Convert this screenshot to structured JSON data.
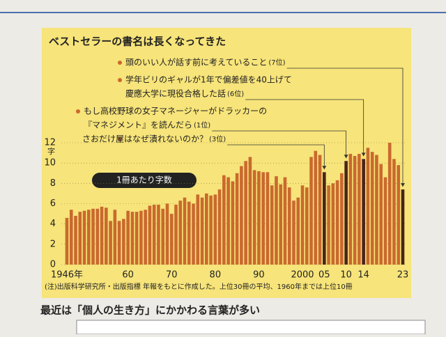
{
  "chart_data": {
    "type": "bar",
    "title": "ベストセラーの書名は長くなってきた",
    "y_unit": "字",
    "value_label": "1冊あたり字数",
    "note": "(注)出版科学研究所・出版指標 年報をもとに作成した。上位30冊の平均、1960年までは上位10冊",
    "subheading": "最近は「個人の生き方」にかかわる言葉が多い",
    "color": "#c9692e",
    "highlight_color": "#4a2418",
    "background": "#f7e47a",
    "ylim": [
      0,
      12
    ],
    "yticks": [
      0,
      2,
      4,
      6,
      8,
      10,
      12
    ],
    "grid": true,
    "categories": [
      "1946年",
      null,
      null,
      null,
      null,
      null,
      null,
      null,
      null,
      null,
      null,
      null,
      null,
      null,
      "60",
      null,
      null,
      null,
      null,
      null,
      null,
      null,
      null,
      null,
      "70",
      null,
      null,
      null,
      null,
      null,
      null,
      null,
      null,
      null,
      "80",
      null,
      null,
      null,
      null,
      null,
      null,
      null,
      null,
      null,
      "90",
      null,
      null,
      null,
      null,
      null,
      null,
      null,
      null,
      null,
      "2000",
      null,
      null,
      null,
      null,
      "05",
      null,
      null,
      null,
      null,
      "10",
      null,
      null,
      null,
      "14",
      null,
      null,
      null,
      null,
      null,
      null,
      null,
      null,
      "23"
    ],
    "values": [
      4.6,
      5.4,
      4.8,
      5.2,
      5.3,
      5.4,
      5.5,
      5.5,
      5.7,
      5.6,
      4.3,
      5.4,
      4.3,
      4.5,
      5.3,
      5.2,
      5.2,
      5.3,
      5.4,
      5.8,
      5.9,
      5.9,
      5.5,
      6.0,
      5.0,
      5.9,
      6.3,
      6.6,
      6.2,
      6.0,
      6.9,
      6.6,
      7.0,
      6.8,
      6.9,
      7.4,
      8.8,
      8.6,
      8.2,
      9.0,
      9.7,
      10.2,
      10.6,
      9.3,
      9.2,
      9.1,
      9.1,
      7.8,
      8.7,
      7.9,
      8.6,
      7.6,
      6.3,
      6.6,
      7.8,
      7.6,
      10.6,
      11.2,
      10.8,
      9.1,
      7.8,
      8.0,
      8.3,
      9.0,
      10.2,
      10.9,
      10.7,
      10.9,
      10.4,
      11.5,
      11.1,
      10.8,
      9.9,
      8.6,
      12.0,
      10.4,
      9.8,
      7.4
    ],
    "annotations": [
      {
        "lines": [
          "頭のいい人が話す前に考えていること"
        ],
        "rank": "(7位)",
        "target": "23"
      },
      {
        "lines": [
          "学年ビリのギャルが1年で偏差値を40上げて",
          "慶應大学に現役合格した話"
        ],
        "rank": "(6位)",
        "target": "14"
      },
      {
        "lines": [
          "もし高校野球の女子マネージャーがドラッカーの",
          "『マネジメント』を読んだら"
        ],
        "rank": "(1位)",
        "target": "10"
      },
      {
        "lines": [
          "さおだけ屋はなぜ潰れないのか？"
        ],
        "rank": "(3位)",
        "target": "05"
      }
    ]
  }
}
